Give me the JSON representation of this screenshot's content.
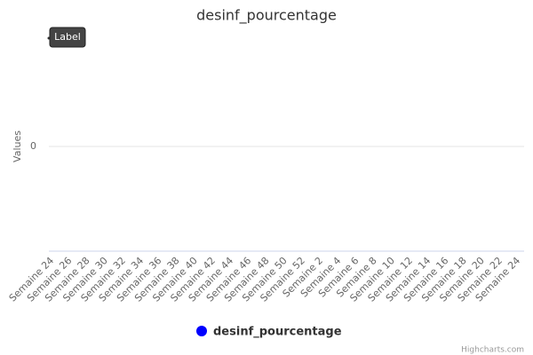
{
  "chart_data": {
    "type": "line",
    "title": "desinf_pourcentage",
    "y_label": "Values",
    "annotation": "Label",
    "credits": "Highcharts.com",
    "categories": [
      "Semaine 24",
      "Semaine 26",
      "Semaine 28",
      "Semaine 30",
      "Semaine 32",
      "Semaine 34",
      "Semaine 36",
      "Semaine 38",
      "Semaine 40",
      "Semaine 42",
      "Semaine 44",
      "Semaine 46",
      "Semaine 48",
      "Semaine 50",
      "Semaine 52",
      "Semaine 2",
      "Semaine 4",
      "Semaine 6",
      "Semaine 8",
      "Semaine 10",
      "Semaine 12",
      "Semaine 14",
      "Semaine 16",
      "Semaine 18",
      "Semaine 20",
      "Semaine 22",
      "Semaine 24"
    ],
    "series": [
      {
        "name": "desinf_pourcentage",
        "color": "#0000ff",
        "values": [
          null,
          null,
          null,
          null,
          null,
          null,
          null,
          null,
          null,
          null,
          null,
          null,
          null,
          null,
          null,
          null,
          null,
          null,
          null,
          null,
          null,
          null,
          null,
          null,
          null,
          null,
          null
        ]
      }
    ],
    "ylim": [
      -1,
      1
    ],
    "yticks": [
      0
    ],
    "grid": true
  }
}
